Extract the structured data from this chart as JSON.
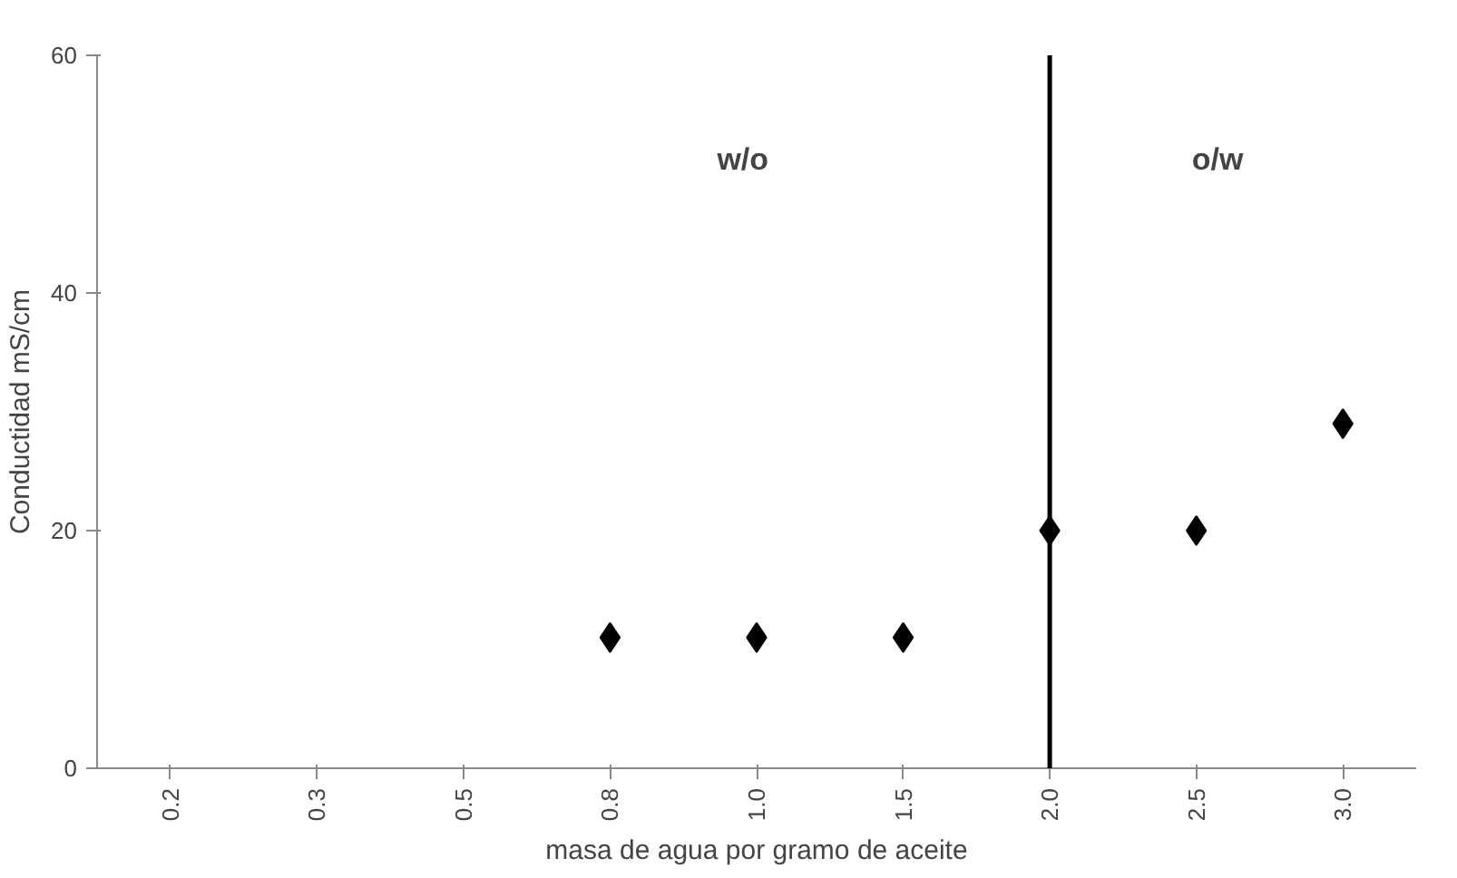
{
  "chart_data": {
    "type": "scatter",
    "xlabel": "masa de agua por gramo de aceite",
    "ylabel": "Conductidad mS/cm",
    "categories": [
      "0.2",
      "0.3",
      "0.5",
      "0.8",
      "1.0",
      "1.5",
      "2.0",
      "2.5",
      "3.0"
    ],
    "series": [
      {
        "color": "#000000",
        "values": [
          null,
          null,
          null,
          11,
          11,
          11,
          20,
          20,
          29
        ]
      }
    ],
    "ylim": [
      0,
      60
    ],
    "yticks": [
      0,
      20,
      40,
      60
    ],
    "marker": "diamond",
    "grid": false,
    "ref_lines": [
      {
        "axis": "x",
        "value": "2.0",
        "color": "#000000"
      }
    ],
    "annotations": [
      "w/o",
      "o/w"
    ]
  }
}
